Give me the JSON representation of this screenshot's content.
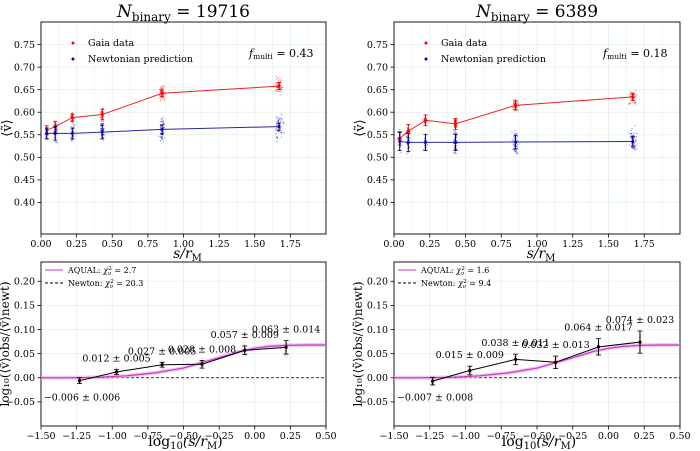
{
  "chart_data": [
    {
      "type": "scatter",
      "panel": "top-left",
      "title_main": "N",
      "title_sub": "binary",
      "title_value": " = 19716",
      "xlabel_main": "s/r",
      "xlabel_sub": "M",
      "ylabel": "⟨ṽ⟩",
      "xlim": [
        0,
        2.0
      ],
      "ylim": [
        0.33,
        0.8
      ],
      "xticks": [
        "0.00",
        "0.25",
        "0.50",
        "0.75",
        "1.00",
        "1.25",
        "1.50",
        "1.75"
      ],
      "yticks": [
        "0.40",
        "0.45",
        "0.50",
        "0.55",
        "0.60",
        "0.65",
        "0.70",
        "0.75"
      ],
      "grid": true,
      "legend_position": "top-left",
      "annotation_main": "f",
      "annotation_sub": "multi",
      "annotation_value": " = 0.43",
      "series": [
        {
          "name": "Gaia data",
          "color": "#ff0000",
          "x": [
            0.04,
            0.1,
            0.22,
            0.43,
            0.85,
            1.67
          ],
          "y": [
            0.56,
            0.568,
            0.588,
            0.595,
            0.642,
            0.658
          ],
          "err": [
            0.01,
            0.012,
            0.008,
            0.012,
            0.007,
            0.008
          ]
        },
        {
          "name": "Newtonian prediction",
          "color": "#0000cc",
          "x": [
            0.04,
            0.1,
            0.22,
            0.43,
            0.85,
            1.67
          ],
          "y": [
            0.553,
            0.553,
            0.553,
            0.556,
            0.562,
            0.568
          ],
          "err": [
            0.012,
            0.015,
            0.012,
            0.015,
            0.01,
            0.008
          ]
        }
      ]
    },
    {
      "type": "scatter",
      "panel": "top-right",
      "title_main": "N",
      "title_sub": "binary",
      "title_value": " = 6389",
      "xlabel_main": "s/r",
      "xlabel_sub": "M",
      "ylabel": "⟨ṽ⟩",
      "xlim": [
        0,
        2.0
      ],
      "ylim": [
        0.33,
        0.8
      ],
      "xticks": [
        "0.00",
        "0.25",
        "0.50",
        "0.75",
        "1.00",
        "1.25",
        "1.50",
        "1.75"
      ],
      "yticks": [
        "0.40",
        "0.45",
        "0.50",
        "0.55",
        "0.60",
        "0.65",
        "0.70",
        "0.75"
      ],
      "grid": true,
      "legend_position": "top-left",
      "annotation_main": "f",
      "annotation_sub": "multi",
      "annotation_value": " = 0.18",
      "series": [
        {
          "name": "Gaia data",
          "color": "#ff0000",
          "x": [
            0.04,
            0.1,
            0.22,
            0.43,
            0.85,
            1.67
          ],
          "y": [
            0.542,
            0.558,
            0.582,
            0.574,
            0.615,
            0.634
          ],
          "err": [
            0.015,
            0.015,
            0.012,
            0.012,
            0.01,
            0.008
          ]
        },
        {
          "name": "Newtonian prediction",
          "color": "#0000cc",
          "x": [
            0.04,
            0.1,
            0.22,
            0.43,
            0.85,
            1.67
          ],
          "y": [
            0.535,
            0.533,
            0.533,
            0.533,
            0.534,
            0.535
          ],
          "err": [
            0.02,
            0.02,
            0.018,
            0.018,
            0.015,
            0.012
          ]
        }
      ]
    },
    {
      "type": "scatter",
      "panel": "bottom-left",
      "xlabel_main": "log",
      "xlabel_sub": "10",
      "xlabel_rest": "(s/r",
      "xlabel_sub2": "M",
      "xlabel_end": ")",
      "ylabel": "log₁₀(⟨ṽ⟩obs/⟨ṽ⟩newt)",
      "xlim": [
        -1.5,
        0.5
      ],
      "ylim": [
        -0.1,
        0.24
      ],
      "xticks": [
        "−1.50",
        "−1.25",
        "−1.00",
        "−0.75",
        "−0.50",
        "−0.25",
        "0.00",
        "0.25",
        "0.50"
      ],
      "yticks": [
        "−0.05",
        "0.00",
        "0.05",
        "0.10",
        "0.15",
        "0.20"
      ],
      "grid": true,
      "legend_position": "top-left",
      "legend": [
        {
          "label": "AQUAL: ",
          "chi": "χ",
          "chisub": "ν",
          "chisup": "2",
          "value": " = 2.7",
          "color": "#cc33cc"
        },
        {
          "label": "Newton: ",
          "chi": "χ",
          "chisub": "ν",
          "chisup": "2",
          "value": " = 20.3",
          "color": "#000000"
        }
      ],
      "x": [
        -1.23,
        -0.97,
        -0.65,
        -0.37,
        -0.07,
        0.22
      ],
      "y": [
        -0.006,
        0.012,
        0.027,
        0.028,
        0.057,
        0.063
      ],
      "err": [
        0.006,
        0.005,
        0.005,
        0.008,
        0.009,
        0.014
      ],
      "labels": [
        "−0.006 ± 0.006",
        "0.012 ± 0.005",
        "0.027 ± 0.005",
        "0.028 ± 0.008",
        "0.057 ± 0.009",
        "0.063 ± 0.014"
      ],
      "aqual_curve": {
        "x": [
          -1.5,
          -1.3,
          -1.1,
          -0.9,
          -0.7,
          -0.5,
          -0.35,
          -0.2,
          -0.1,
          0.0,
          0.1,
          0.22,
          0.35,
          0.5
        ],
        "y": [
          0,
          0,
          0.001,
          0.004,
          0.01,
          0.02,
          0.033,
          0.046,
          0.055,
          0.061,
          0.065,
          0.067,
          0.068,
          0.068
        ]
      }
    },
    {
      "type": "scatter",
      "panel": "bottom-right",
      "xlabel_main": "log",
      "xlabel_sub": "10",
      "xlabel_rest": "(s/r",
      "xlabel_sub2": "M",
      "xlabel_end": ")",
      "ylabel": "log₁₀(⟨ṽ⟩obs/⟨ṽ⟩newt)",
      "xlim": [
        -1.5,
        0.5
      ],
      "ylim": [
        -0.1,
        0.24
      ],
      "xticks": [
        "−1.50",
        "−1.25",
        "−1.00",
        "−0.75",
        "−0.50",
        "−0.25",
        "0.00",
        "0.25",
        "0.50"
      ],
      "yticks": [
        "−0.05",
        "0.00",
        "0.05",
        "0.10",
        "0.15",
        "0.20"
      ],
      "grid": true,
      "legend_position": "top-left",
      "legend": [
        {
          "label": "AQUAL: ",
          "chi": "χ",
          "chisub": "ν",
          "chisup": "2",
          "value": " = 1.6",
          "color": "#cc33cc"
        },
        {
          "label": "Newton: ",
          "chi": "χ",
          "chisub": "ν",
          "chisup": "2",
          "value": " = 9.4",
          "color": "#000000"
        }
      ],
      "x": [
        -1.23,
        -0.97,
        -0.65,
        -0.37,
        -0.07,
        0.22
      ],
      "y": [
        -0.007,
        0.015,
        0.038,
        0.032,
        0.064,
        0.074
      ],
      "err": [
        0.008,
        0.009,
        0.011,
        0.013,
        0.017,
        0.023
      ],
      "labels": [
        "−0.007 ± 0.008",
        "0.015 ± 0.009",
        "0.038 ± 0.011",
        "0.032 ± 0.013",
        "0.064 ± 0.017",
        "0.074 ± 0.023"
      ],
      "aqual_curve": {
        "x": [
          -1.5,
          -1.3,
          -1.1,
          -0.9,
          -0.7,
          -0.5,
          -0.35,
          -0.2,
          -0.1,
          0.0,
          0.1,
          0.22,
          0.35,
          0.5
        ],
        "y": [
          0,
          0,
          0.001,
          0.004,
          0.01,
          0.02,
          0.033,
          0.046,
          0.055,
          0.061,
          0.065,
          0.067,
          0.068,
          0.068
        ]
      }
    }
  ]
}
